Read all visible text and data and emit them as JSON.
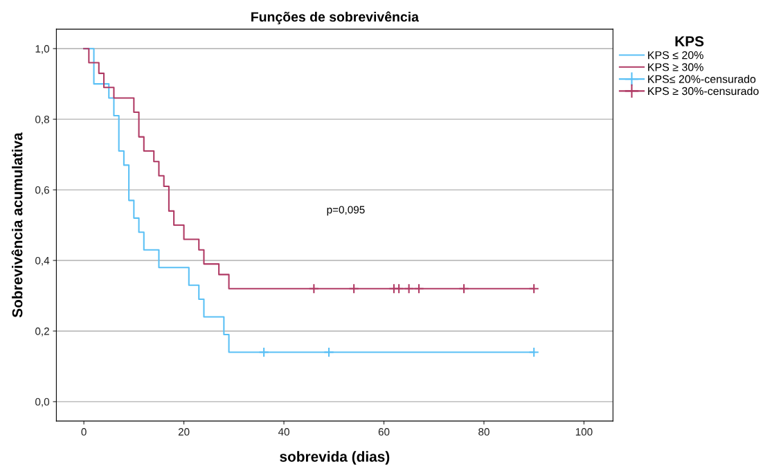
{
  "chart_data": {
    "type": "step",
    "title": "Funções de sobrevivência",
    "xlabel": "sobrevida (dias)",
    "ylabel": "Sobrevivência acumulativa",
    "legend_title": "KPS",
    "series": [
      {
        "name": "KPS ≤ 20%",
        "color": "#5ac0f5",
        "x": [
          0,
          2,
          5,
          6,
          7,
          8,
          9,
          10,
          11,
          12,
          15,
          21,
          23,
          24,
          28,
          29,
          90
        ],
        "values": [
          1.0,
          0.9,
          0.86,
          0.81,
          0.71,
          0.67,
          0.57,
          0.52,
          0.48,
          0.43,
          0.38,
          0.33,
          0.29,
          0.24,
          0.19,
          0.14,
          0.14
        ]
      },
      {
        "name": "KPS ≥ 30%",
        "color": "#b03a64",
        "x": [
          0,
          1,
          3,
          4,
          6,
          10,
          11,
          12,
          14,
          15,
          16,
          17,
          18,
          20,
          23,
          24,
          27,
          29,
          90
        ],
        "values": [
          1.0,
          0.96,
          0.93,
          0.89,
          0.86,
          0.82,
          0.75,
          0.71,
          0.68,
          0.64,
          0.61,
          0.54,
          0.5,
          0.46,
          0.43,
          0.39,
          0.36,
          0.32,
          0.32
        ]
      },
      {
        "name": "KPS≤ 20%-censurado",
        "type": "scatter",
        "marker": "cross",
        "color": "#5ac0f5",
        "x": [
          36,
          49,
          90
        ],
        "values": [
          0.14,
          0.14,
          0.14
        ]
      },
      {
        "name": "KPS ≥ 30%-censurado",
        "type": "scatter",
        "marker": "cross",
        "color": "#b03a64",
        "x": [
          46,
          54,
          62,
          63,
          65,
          67,
          76,
          90
        ],
        "values": [
          0.32,
          0.32,
          0.32,
          0.32,
          0.32,
          0.32,
          0.32,
          0.32
        ]
      }
    ],
    "xlim": [
      -5.5,
      105.8
    ],
    "xticks": [
      0,
      20,
      40,
      60,
      80,
      100
    ],
    "ylim": [
      -0.055,
      1.055
    ],
    "yticks": [
      {
        "value": 0,
        "label": "0,0"
      },
      {
        "value": 0.2,
        "label": "0,2"
      },
      {
        "value": 0.4,
        "label": "0,4"
      },
      {
        "value": 0.6,
        "label": "0,6"
      },
      {
        "value": 0.8,
        "label": "0,8"
      },
      {
        "value": 1.0,
        "label": "1,0"
      }
    ],
    "grid": "y",
    "legend": "top right",
    "annotations": [
      "p=0,095"
    ]
  }
}
